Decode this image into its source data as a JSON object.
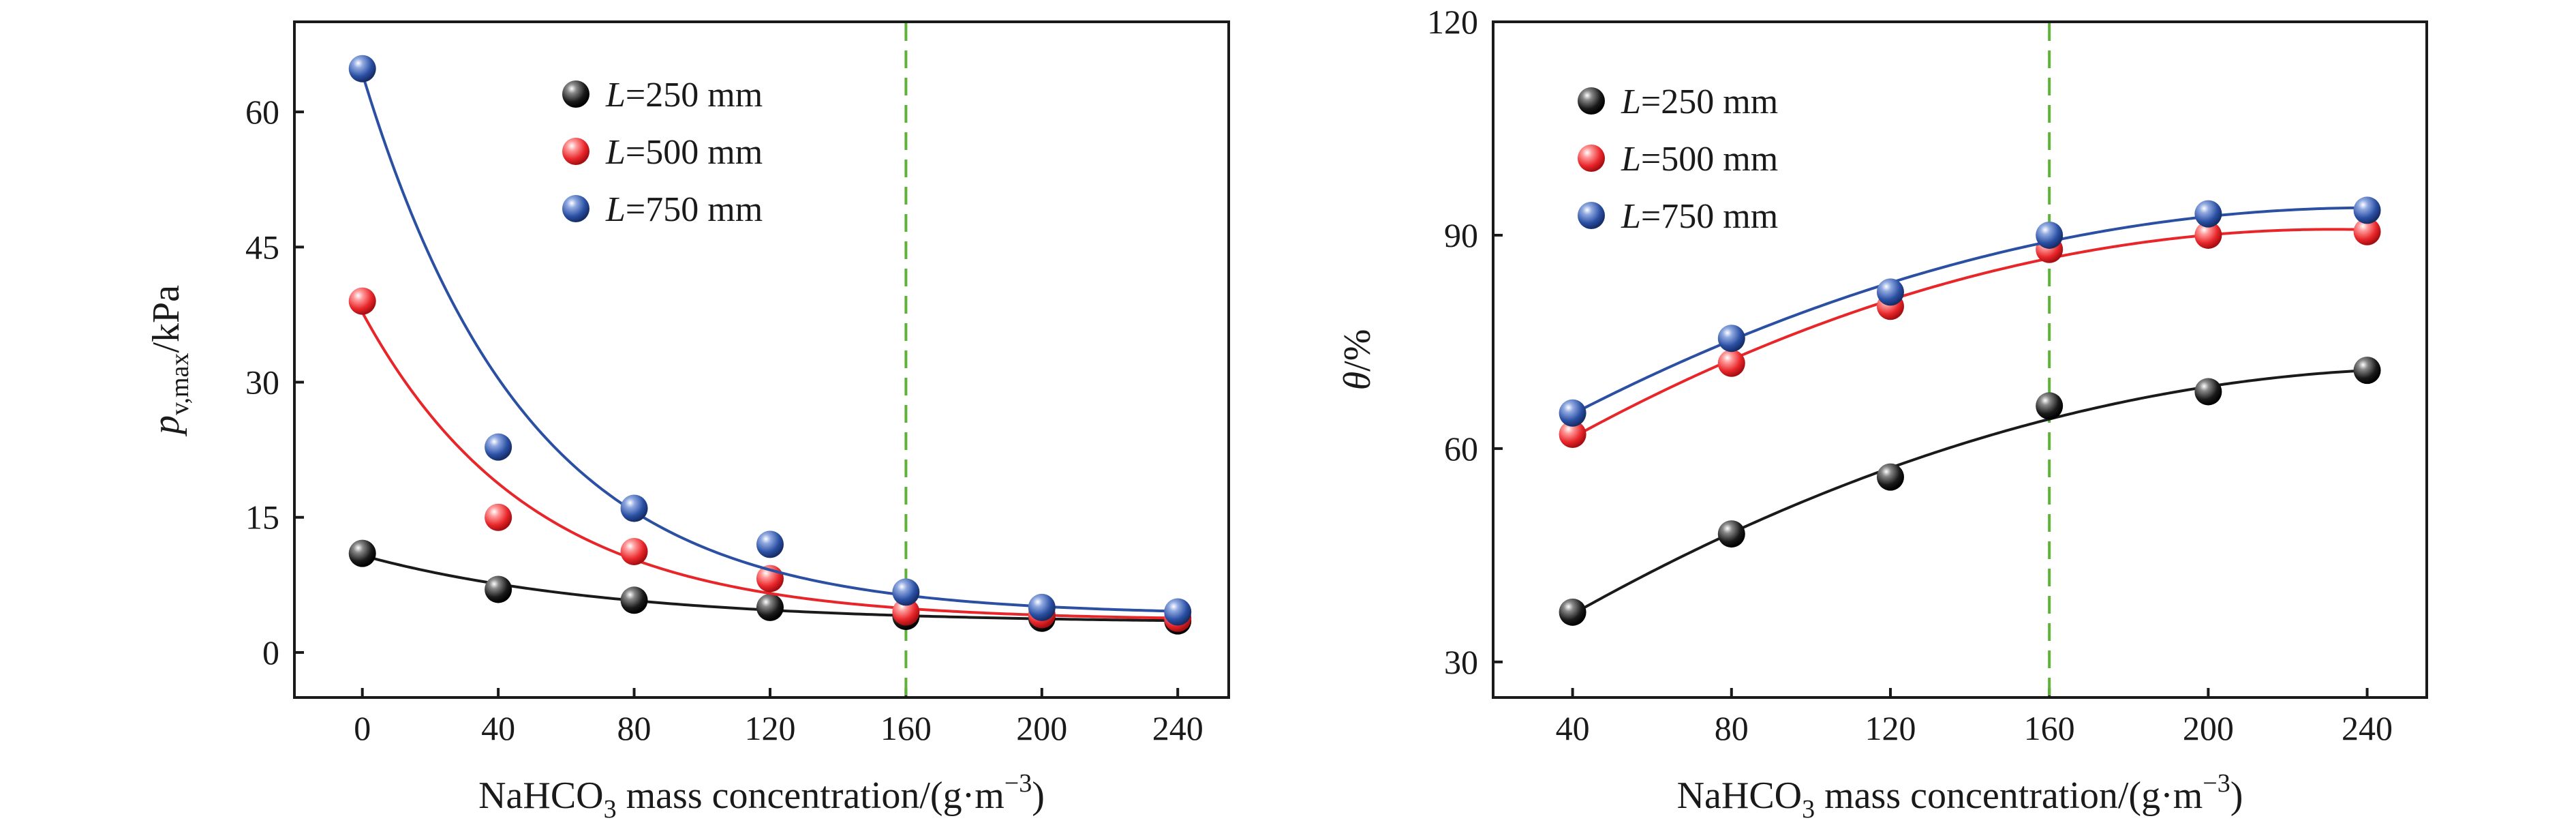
{
  "chart_data": [
    {
      "type": "scatter",
      "title": "",
      "xlabel": {
        "prefix": "NaHCO",
        "sub": "3",
        "mid": " mass concentration/(g·m",
        "sup": "−3",
        "suffix": ")"
      },
      "ylabel": {
        "main": "p",
        "sub": "v,max",
        "suffix": "/kPa"
      },
      "xlim": [
        -20,
        255
      ],
      "ylim": [
        -5,
        70
      ],
      "xticks": [
        "0",
        "40",
        "80",
        "120",
        "160",
        "200",
        "240"
      ],
      "yticks": [
        "0",
        "15",
        "30",
        "45",
        "60"
      ],
      "reference_line_x": 160,
      "legend_position": "top-center",
      "grid": false,
      "series": [
        {
          "name_var": "L",
          "name_rest": "=250 mm",
          "color": "#1a1a1a",
          "fit": "exponential",
          "x": [
            0,
            40,
            80,
            120,
            160,
            200,
            240
          ],
          "y": [
            11.0,
            7.0,
            5.8,
            5.0,
            4.0,
            3.8,
            3.5
          ]
        },
        {
          "name_var": "L",
          "name_rest": "=500 mm",
          "color": "#e8262a",
          "fit": "exponential",
          "x": [
            0,
            40,
            80,
            120,
            160,
            200,
            240
          ],
          "y": [
            39.0,
            15.0,
            11.2,
            8.2,
            4.5,
            4.2,
            3.8
          ]
        },
        {
          "name_var": "L",
          "name_rest": "=750 mm",
          "color": "#2a4fa3",
          "fit": "exponential",
          "x": [
            0,
            40,
            80,
            120,
            160,
            200,
            240
          ],
          "y": [
            64.8,
            22.8,
            16.0,
            12.0,
            6.7,
            5.0,
            4.5
          ]
        }
      ]
    },
    {
      "type": "scatter",
      "title": "",
      "xlabel": {
        "prefix": "NaHCO",
        "sub": "3",
        "mid": " mass concentration/(g·m",
        "sup": "−3",
        "suffix": ")"
      },
      "ylabel": {
        "main": "θ",
        "sub": "",
        "suffix": "/%"
      },
      "xlim": [
        20,
        255
      ],
      "ylim": [
        25,
        120
      ],
      "xticks": [
        "40",
        "80",
        "120",
        "160",
        "200",
        "240"
      ],
      "yticks": [
        "30",
        "60",
        "90",
        "120"
      ],
      "reference_line_x": 160,
      "legend_position": "top-left",
      "grid": false,
      "series": [
        {
          "name_var": "L",
          "name_rest": "=250 mm",
          "color": "#1a1a1a",
          "fit": "quadratic",
          "x": [
            40,
            80,
            120,
            160,
            200,
            240
          ],
          "y": [
            37.0,
            48.0,
            56.0,
            66.0,
            68.0,
            71.0
          ]
        },
        {
          "name_var": "L",
          "name_rest": "=500 mm",
          "color": "#e8262a",
          "fit": "quadratic",
          "x": [
            40,
            80,
            120,
            160,
            200,
            240
          ],
          "y": [
            62.0,
            72.0,
            80.0,
            88.0,
            90.0,
            90.5
          ]
        },
        {
          "name_var": "L",
          "name_rest": "=750 mm",
          "color": "#2a4fa3",
          "fit": "quadratic",
          "x": [
            40,
            80,
            120,
            160,
            200,
            240
          ],
          "y": [
            65.0,
            75.5,
            82.0,
            90.0,
            93.0,
            93.5
          ]
        }
      ]
    }
  ]
}
